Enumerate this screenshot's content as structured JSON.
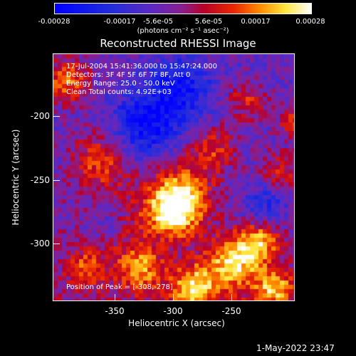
{
  "colorbar": {
    "tick_labels": [
      "-0.00028",
      "-0.00017",
      "-5.6e-05",
      "5.6e-05",
      "0.00017",
      "0.00028"
    ],
    "units": "(photons cm⁻² s⁻¹ asec⁻²)",
    "colormap": "rhessi-blue-to-white"
  },
  "title": "Reconstructed RHESSI Image",
  "annotations": {
    "time_range": "17-Jul-2004 15:41:36.000 to 15:47:24.000",
    "detectors": "Detectors: 3F 4F 5F 6F 7F 8F, Att 0",
    "energy": "Energy Range: 25.0 - 50.0 keV",
    "clean": "Clean     Total counts: 4.92E+03",
    "peak": "Position of Peak = [-308,-278]"
  },
  "axes": {
    "xlabel": "Heliocentric X (arcsec)",
    "ylabel": "Heliocentric Y (arcsec)",
    "x_ticks": [
      "-350",
      "-300",
      "-250"
    ],
    "y_ticks": [
      "-200",
      "-250",
      "-300"
    ]
  },
  "footer": {
    "timestamp": "1-May-2022 23:47"
  },
  "chart_data": {
    "type": "heatmap",
    "title": "Reconstructed RHESSI Image",
    "xlabel": "Heliocentric X (arcsec)",
    "ylabel": "Heliocentric Y (arcsec)",
    "xlim": [
      -395,
      -214
    ],
    "ylim": [
      -345,
      -160
    ],
    "color_range": [
      -0.00028,
      0.00028
    ],
    "peak": [
      -308,
      -278
    ]
  }
}
